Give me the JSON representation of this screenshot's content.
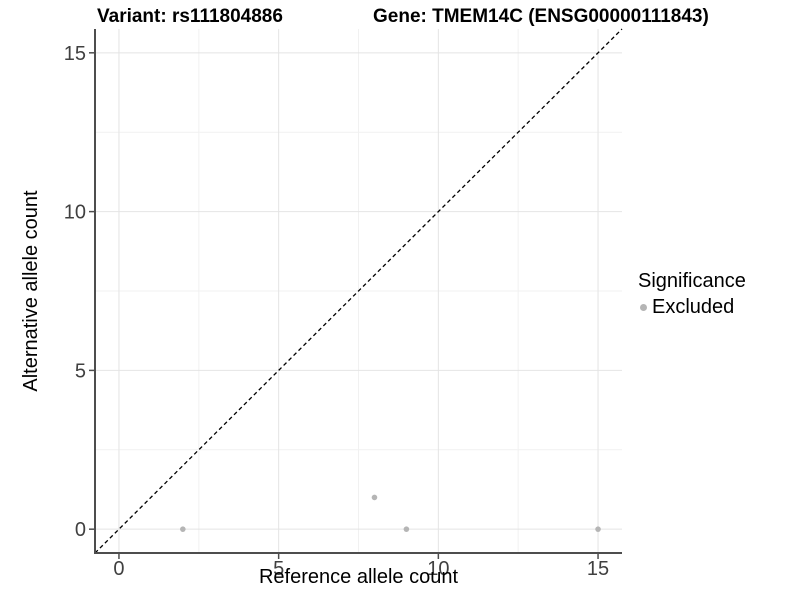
{
  "chart_data": {
    "type": "scatter",
    "title_left": "Variant: rs111804886",
    "title_right": "Gene: TMEM14C (ENSG00000111843)",
    "xlabel": "Reference allele count",
    "ylabel": "Alternative allele count",
    "xlim": [
      -0.75,
      15.75
    ],
    "ylim": [
      -0.75,
      15.75
    ],
    "x_ticks": [
      0,
      5,
      10,
      15
    ],
    "y_ticks": [
      0,
      5,
      10,
      15
    ],
    "x_minor": [
      2.5,
      7.5,
      12.5
    ],
    "y_minor": [
      2.5,
      7.5,
      12.5
    ],
    "grid": true,
    "identity_line": {
      "style": "dashed",
      "from": [
        -0.75,
        -0.75
      ],
      "to": [
        15.75,
        15.75
      ]
    },
    "series": [
      {
        "name": "Excluded",
        "color": "#b5b5b5",
        "points": [
          [
            2,
            0
          ],
          [
            8,
            1
          ],
          [
            9,
            0
          ],
          [
            15,
            0
          ]
        ]
      }
    ],
    "legend": {
      "title": "Significance",
      "position": "right",
      "entries": [
        {
          "label": "Excluded",
          "color": "#b5b5b5"
        }
      ]
    },
    "colors": {
      "point": "#b5b5b5",
      "grid_major": "#e4e4e4",
      "grid_minor": "#f1f1f1",
      "axis_line": "#4d4d4d",
      "tick_label": "#404040",
      "identity_line": "#000000",
      "background": "#ffffff"
    }
  }
}
